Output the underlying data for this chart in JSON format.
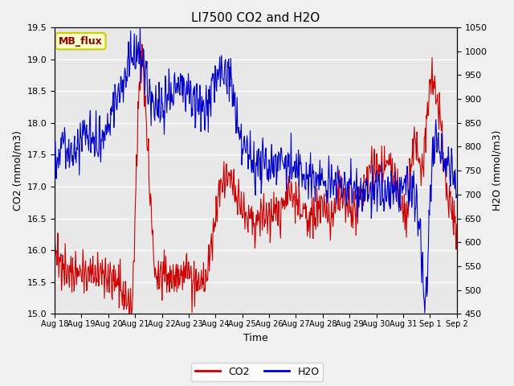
{
  "title": "LI7500 CO2 and H2O",
  "xlabel": "Time",
  "ylabel_left": "CO2 (mmol/m3)",
  "ylabel_right": "H2O (mmol/m3)",
  "co2_ylim": [
    15.0,
    19.5
  ],
  "h2o_ylim": [
    450,
    1050
  ],
  "co2_yticks": [
    15.0,
    15.5,
    16.0,
    16.5,
    17.0,
    17.5,
    18.0,
    18.5,
    19.0,
    19.5
  ],
  "h2o_yticks": [
    450,
    500,
    550,
    600,
    650,
    700,
    750,
    800,
    850,
    900,
    950,
    1000,
    1050
  ],
  "xtick_labels": [
    "Aug 18",
    "Aug 19",
    "Aug 20",
    "Aug 21",
    "Aug 22",
    "Aug 23",
    "Aug 24",
    "Aug 25",
    "Aug 26",
    "Aug 27",
    "Aug 28",
    "Aug 29",
    "Aug 30",
    "Aug 31",
    "Sep 1",
    "Sep 2"
  ],
  "co2_color": "#cc0000",
  "h2o_color": "#0000cc",
  "bg_color": "#f0f0f0",
  "plot_bg_color": "#e8e8e8",
  "title_fontsize": 11,
  "axis_label_fontsize": 9,
  "tick_fontsize": 8,
  "annotation_text": "MB_flux",
  "annotation_bg": "#ffffcc",
  "annotation_border": "#cccc00",
  "legend_co2": "CO2",
  "legend_h2o": "H2O",
  "figwidth": 6.4,
  "figheight": 4.8,
  "dpi": 100
}
